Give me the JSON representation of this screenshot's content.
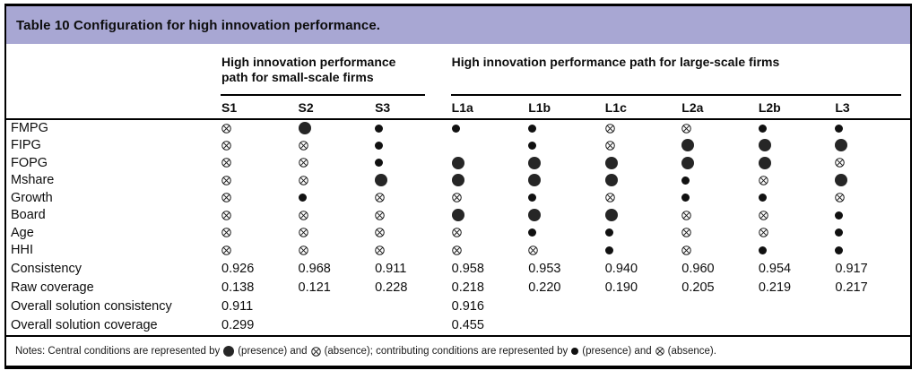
{
  "title": "Table 10 Configuration for high innovation performance.",
  "colors": {
    "header_bg": "#a8a7d3",
    "border": "#000000",
    "symbol": "#1c1c1c"
  },
  "column_groups": [
    {
      "label": "High innovation performance path for small-scale firms",
      "columns": [
        "S1",
        "S2",
        "S3"
      ]
    },
    {
      "label": "High innovation performance path for large-scale firms",
      "columns": [
        "L1a",
        "L1b",
        "L1c",
        "L2a",
        "L2b",
        "L3"
      ]
    }
  ],
  "symbol_legend": {
    "central-presence": "large filled circle = central condition present",
    "presence": "small filled circle = contributing condition present",
    "absence": "circled cross = condition absent",
    "blank": "no condition shown"
  },
  "condition_rows": [
    {
      "label": "FMPG",
      "cells": [
        "absence",
        "central-presence",
        "presence",
        "presence",
        "presence",
        "absence",
        "absence",
        "presence",
        "presence"
      ]
    },
    {
      "label": "FIPG",
      "cells": [
        "absence",
        "absence",
        "presence",
        "blank",
        "presence",
        "absence",
        "central-presence",
        "central-presence",
        "central-presence"
      ]
    },
    {
      "label": "FOPG",
      "cells": [
        "absence",
        "absence",
        "presence",
        "central-presence",
        "central-presence",
        "central-presence",
        "central-presence",
        "central-presence",
        "absence"
      ]
    },
    {
      "label": "Mshare",
      "cells": [
        "absence",
        "absence",
        "central-presence",
        "central-presence",
        "central-presence",
        "central-presence",
        "presence",
        "absence",
        "central-presence"
      ]
    },
    {
      "label": "Growth",
      "cells": [
        "absence",
        "presence",
        "absence",
        "absence",
        "presence",
        "absence",
        "presence",
        "presence",
        "absence"
      ]
    },
    {
      "label": "Board",
      "cells": [
        "absence",
        "absence",
        "absence",
        "central-presence",
        "central-presence",
        "central-presence",
        "absence",
        "absence",
        "presence"
      ]
    },
    {
      "label": "Age",
      "cells": [
        "absence",
        "absence",
        "absence",
        "absence",
        "presence",
        "presence",
        "absence",
        "absence",
        "presence"
      ]
    },
    {
      "label": "HHI",
      "cells": [
        "absence",
        "absence",
        "absence",
        "absence",
        "absence",
        "presence",
        "absence",
        "presence",
        "presence"
      ]
    }
  ],
  "statistic_rows": [
    {
      "label": "Consistency",
      "values": [
        "0.926",
        "0.968",
        "0.911",
        "0.958",
        "0.953",
        "0.940",
        "0.960",
        "0.954",
        "0.917"
      ]
    },
    {
      "label": "Raw coverage",
      "values": [
        "0.138",
        "0.121",
        "0.228",
        "0.218",
        "0.220",
        "0.190",
        "0.205",
        "0.219",
        "0.217"
      ]
    },
    {
      "label": "Overall solution consistency",
      "values": [
        "0.911",
        "",
        "",
        "0.916",
        "",
        "",
        "",
        "",
        ""
      ]
    },
    {
      "label": "Overall solution coverage",
      "values": [
        "0.299",
        "",
        "",
        "0.455",
        "",
        "",
        "",
        "",
        ""
      ]
    }
  ],
  "note": {
    "part1": "Notes: Central conditions are represented by",
    "part2": "(presence) and",
    "part3": "(absence); contributing conditions are represented by",
    "part4": "(presence) and",
    "part5": "(absence)."
  }
}
